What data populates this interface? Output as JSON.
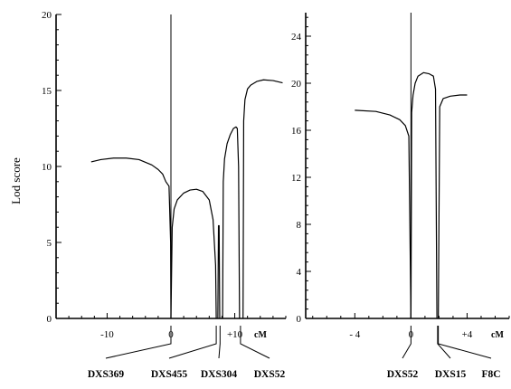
{
  "chart_data": [
    {
      "type": "line",
      "title": "",
      "ylabel": "Lod score",
      "xlabel": "cM",
      "xlim": [
        -18,
        18
      ],
      "ylim": [
        0,
        20
      ],
      "xticks": [
        -10,
        0,
        10
      ],
      "xtick_labels": [
        "-10",
        "0",
        "+10"
      ],
      "yticks": [
        0,
        5,
        10,
        15,
        20
      ],
      "ytick_labels": [
        "0",
        "5",
        "10",
        "15",
        "20"
      ],
      "grid": false,
      "reference_line_x": 0,
      "series": [
        {
          "segments": [
            [
              [
                -12.5,
                10.3
              ],
              [
                -11,
                10.45
              ],
              [
                -9,
                10.55
              ],
              [
                -7,
                10.55
              ],
              [
                -5,
                10.45
              ],
              [
                -3,
                10.1
              ],
              [
                -2,
                9.8
              ],
              [
                -1.3,
                9.5
              ],
              [
                -0.8,
                9.0
              ],
              [
                -0.3,
                8.7
              ],
              [
                -0.05,
                5
              ],
              [
                0,
                0
              ]
            ],
            [
              [
                0,
                0
              ],
              [
                0.2,
                6
              ],
              [
                0.5,
                7.2
              ],
              [
                1,
                7.8
              ],
              [
                2,
                8.25
              ],
              [
                3,
                8.45
              ],
              [
                4,
                8.5
              ],
              [
                5,
                8.35
              ],
              [
                6,
                7.8
              ],
              [
                6.6,
                6.5
              ],
              [
                7.0,
                3.5
              ],
              [
                7.1,
                0
              ]
            ],
            [
              [
                7.35,
                0
              ],
              [
                7.45,
                6.1
              ],
              [
                7.55,
                6.1
              ],
              [
                7.65,
                0
              ]
            ],
            [
              [
                8.1,
                0
              ],
              [
                8.2,
                9
              ],
              [
                8.4,
                10.5
              ],
              [
                8.8,
                11.5
              ],
              [
                9.3,
                12.1
              ],
              [
                9.8,
                12.5
              ],
              [
                10.2,
                12.6
              ],
              [
                10.4,
                12.5
              ],
              [
                10.6,
                10
              ],
              [
                10.75,
                0
              ]
            ],
            [
              [
                11.3,
                0
              ],
              [
                11.4,
                13
              ],
              [
                11.6,
                14.4
              ],
              [
                12.0,
                15.1
              ],
              [
                12.5,
                15.35
              ],
              [
                13.5,
                15.6
              ],
              [
                14.5,
                15.7
              ],
              [
                16,
                15.65
              ],
              [
                17.5,
                15.5
              ]
            ]
          ]
        }
      ],
      "markers": [
        {
          "name": "DXS369",
          "x": 0
        },
        {
          "name": "DXS455",
          "x": 7.1
        },
        {
          "name": "DXS304",
          "x": 7.7
        },
        {
          "name": "DXS52",
          "x": 10.9
        }
      ]
    },
    {
      "type": "line",
      "title": "",
      "ylabel": "",
      "xlabel": "cM",
      "xlim": [
        -7.5,
        7
      ],
      "ylim": [
        0,
        26
      ],
      "xticks": [
        -4,
        0,
        4
      ],
      "xtick_labels": [
        "- 4",
        "0",
        "+4"
      ],
      "yticks": [
        0,
        4,
        8,
        12,
        16,
        20,
        24
      ],
      "ytick_labels": [
        "0",
        "4",
        "8",
        "12",
        "16",
        "20",
        "24"
      ],
      "grid": false,
      "reference_line_x": 0,
      "series": [
        {
          "segments": [
            [
              [
                -4,
                17.7
              ],
              [
                -2.5,
                17.6
              ],
              [
                -1.5,
                17.3
              ],
              [
                -0.8,
                16.9
              ],
              [
                -0.4,
                16.4
              ],
              [
                -0.15,
                15.5
              ],
              [
                0,
                0
              ]
            ],
            [
              [
                0,
                0
              ],
              [
                0.05,
                17.5
              ],
              [
                0.15,
                19
              ],
              [
                0.3,
                20
              ],
              [
                0.5,
                20.6
              ],
              [
                0.9,
                20.9
              ],
              [
                1.3,
                20.8
              ],
              [
                1.6,
                20.6
              ],
              [
                1.75,
                19.5
              ],
              [
                1.85,
                0
              ]
            ],
            [
              [
                1.95,
                0
              ],
              [
                2.05,
                18
              ],
              [
                2.3,
                18.7
              ],
              [
                2.8,
                18.9
              ],
              [
                3.5,
                19.0
              ],
              [
                4,
                19.0
              ]
            ]
          ]
        }
      ],
      "markers": [
        {
          "name": "DXS52",
          "x": 0
        },
        {
          "name": "DXS15",
          "x": 1.9
        },
        {
          "name": "F8C",
          "x": 1.95
        }
      ]
    }
  ]
}
